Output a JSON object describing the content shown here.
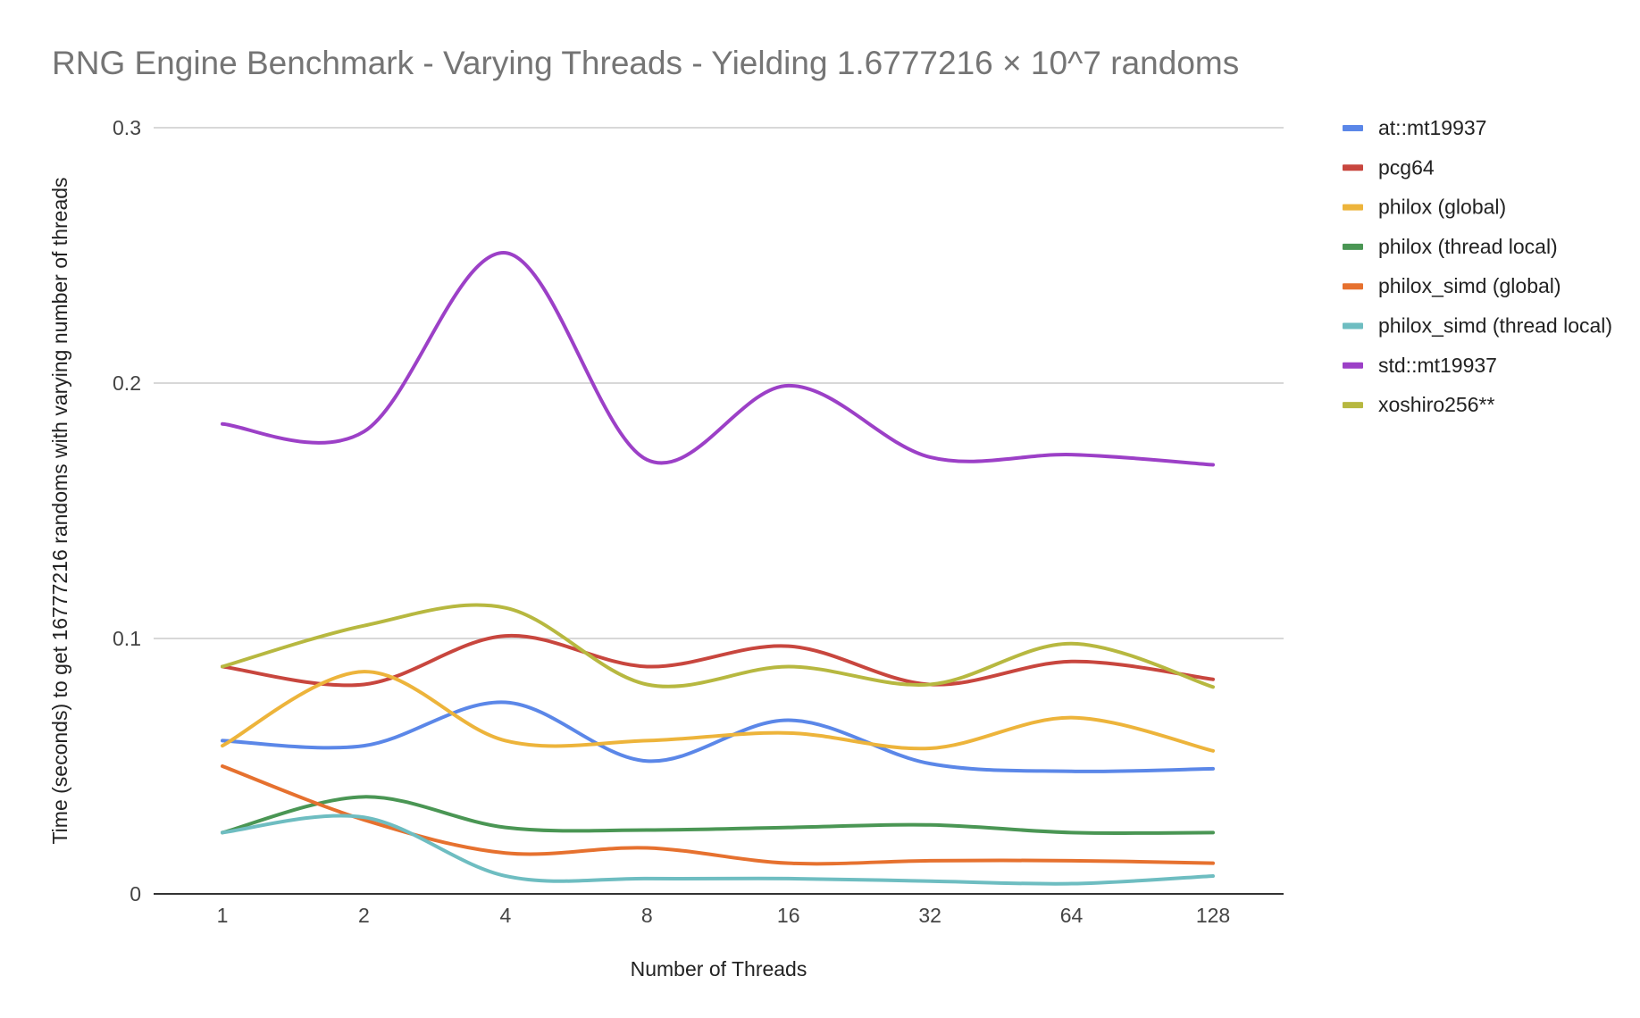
{
  "chart_data": {
    "type": "line",
    "title": "RNG Engine Benchmark - Varying Threads - Yielding 1.6777216 × 10^7 randoms",
    "xlabel": "Number of Threads",
    "ylabel": "Time (seconds) to get 16777216 randoms with varying number of threads",
    "categories": [
      "1",
      "2",
      "4",
      "8",
      "16",
      "32",
      "64",
      "128"
    ],
    "ylim": [
      0,
      0.3
    ],
    "yticks": [
      "0",
      "0.1",
      "0.2",
      "0.3"
    ],
    "ytick_values": [
      0,
      0.1,
      0.2,
      0.3
    ],
    "grid": true,
    "legend_position": "right",
    "series": [
      {
        "name": "at::mt19937",
        "color": "#5b87e8",
        "values": [
          0.06,
          0.058,
          0.075,
          0.052,
          0.068,
          0.051,
          0.048,
          0.049
        ]
      },
      {
        "name": "pcg64",
        "color": "#c8463e",
        "values": [
          0.089,
          0.082,
          0.101,
          0.089,
          0.097,
          0.082,
          0.091,
          0.084
        ]
      },
      {
        "name": "philox (global)",
        "color": "#edb43b",
        "values": [
          0.058,
          0.087,
          0.06,
          0.06,
          0.063,
          0.057,
          0.069,
          0.056
        ]
      },
      {
        "name": "philox (thread local)",
        "color": "#4a9654",
        "values": [
          0.024,
          0.038,
          0.026,
          0.025,
          0.026,
          0.027,
          0.024,
          0.024
        ]
      },
      {
        "name": "philox_simd (global)",
        "color": "#e6712f",
        "values": [
          0.05,
          0.029,
          0.016,
          0.018,
          0.012,
          0.013,
          0.013,
          0.012
        ]
      },
      {
        "name": "philox_simd (thread local)",
        "color": "#6ebdc1",
        "values": [
          0.024,
          0.03,
          0.007,
          0.006,
          0.006,
          0.005,
          0.004,
          0.007
        ]
      },
      {
        "name": "std::mt19937",
        "color": "#9c40c7",
        "values": [
          0.184,
          0.181,
          0.251,
          0.17,
          0.199,
          0.171,
          0.172,
          0.168
        ]
      },
      {
        "name": "xoshiro256**",
        "color": "#b7b840",
        "values": [
          0.089,
          0.105,
          0.112,
          0.082,
          0.089,
          0.082,
          0.098,
          0.081
        ]
      }
    ]
  }
}
